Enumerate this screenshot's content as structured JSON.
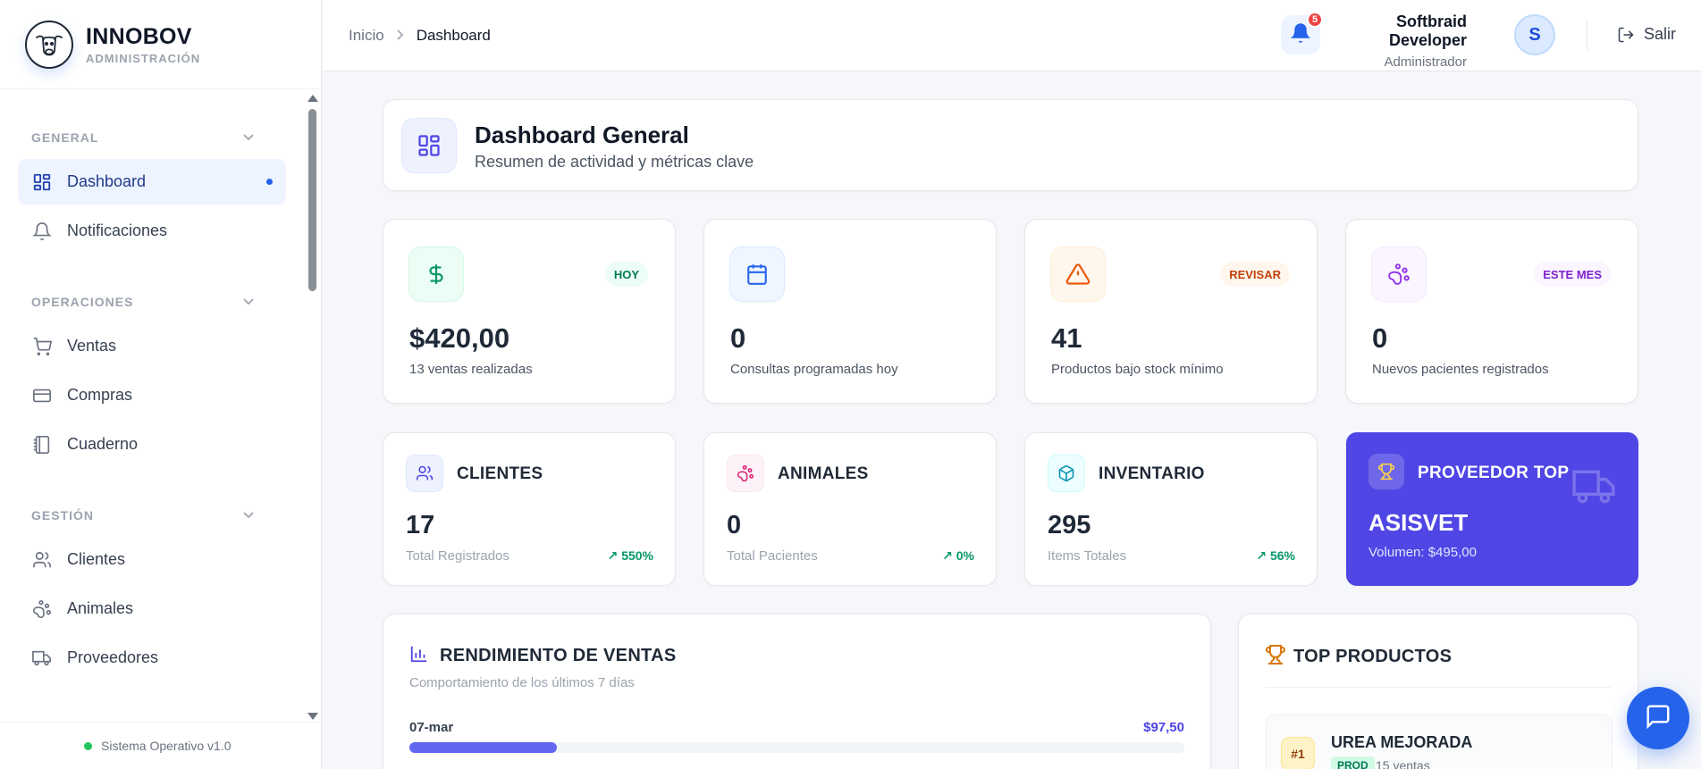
{
  "brand": {
    "name": "INNOBOV",
    "subtitle": "ADMINISTRACIÓN"
  },
  "sidebar": {
    "sections": [
      {
        "label": "GENERAL",
        "items": [
          {
            "label": "Dashboard",
            "icon": "grid-icon",
            "active": true
          },
          {
            "label": "Notificaciones",
            "icon": "bell-icon"
          }
        ]
      },
      {
        "label": "OPERACIONES",
        "items": [
          {
            "label": "Ventas",
            "icon": "cart-icon"
          },
          {
            "label": "Compras",
            "icon": "credit-card-icon"
          },
          {
            "label": "Cuaderno",
            "icon": "notebook-icon"
          }
        ]
      },
      {
        "label": "GESTIÓN",
        "items": [
          {
            "label": "Clientes",
            "icon": "users-icon"
          },
          {
            "label": "Animales",
            "icon": "paw-icon"
          },
          {
            "label": "Proveedores",
            "icon": "truck-icon"
          }
        ]
      }
    ],
    "footer": "Sistema Operativo v1.0"
  },
  "header": {
    "breadcrumb": {
      "home": "Inicio",
      "current": "Dashboard"
    },
    "notifications_count": "5",
    "user": {
      "name": "Softbraid Developer",
      "role": "Administrador",
      "initial": "S"
    },
    "logout_label": "Salir"
  },
  "dashboard": {
    "title": "Dashboard General",
    "subtitle": "Resumen de actividad y métricas clave",
    "stats": [
      {
        "value": "$420,00",
        "label": "13 ventas realizadas",
        "badge": "HOY",
        "icon": "dollar-icon",
        "color": "#059669"
      },
      {
        "value": "0",
        "label": "Consultas programadas hoy",
        "badge": "",
        "icon": "calendar-icon",
        "color": "#2563eb"
      },
      {
        "value": "41",
        "label": "Productos bajo stock mínimo",
        "badge": "REVISAR",
        "icon": "warning-icon",
        "color": "#ea580c"
      },
      {
        "value": "0",
        "label": "Nuevos pacientes registrados",
        "badge": "ESTE MES",
        "icon": "paw-icon",
        "color": "#9333ea"
      }
    ],
    "metrics": [
      {
        "title": "CLIENTES",
        "value": "17",
        "label": "Total Registrados",
        "trend": "550%",
        "icon": "users-icon"
      },
      {
        "title": "ANIMALES",
        "value": "0",
        "label": "Total Pacientes",
        "trend": "0%",
        "icon": "paw-icon"
      },
      {
        "title": "INVENTARIO",
        "value": "295",
        "label": "Items Totales",
        "trend": "56%",
        "icon": "box-icon"
      }
    ],
    "top_provider": {
      "title": "PROVEEDOR TOP",
      "name": "ASISVET",
      "volume": "Volumen: $495,00"
    },
    "sales_performance": {
      "title": "RENDIMIENTO DE VENTAS",
      "subtitle": "Comportamiento de los últimos 7 días",
      "rows": [
        {
          "date": "07-mar",
          "amount": "$97,50",
          "fraction": 0.19
        }
      ]
    },
    "top_products": {
      "title": "TOP PRODUCTOS",
      "items": [
        {
          "rank": "#1",
          "name": "UREA MEJORADA",
          "tag": "PROD",
          "sales": "15 ventas"
        }
      ]
    }
  }
}
